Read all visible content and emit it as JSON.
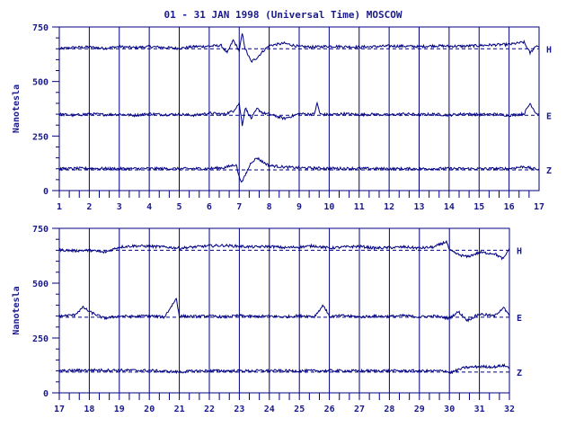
{
  "title": "01 - 31 JAN 1998 (Universal Time) MOSCOW",
  "colors": {
    "trace": "#000080",
    "axis": "#000080",
    "text": "#1a1a8c",
    "background": "#ffffff"
  },
  "chart_data": [
    {
      "type": "line",
      "panel": "top",
      "ylabel": "Nanotesla",
      "ylim": [
        0,
        750
      ],
      "yticks": [
        "0",
        "250",
        "500",
        "750"
      ],
      "xlim": [
        1,
        17
      ],
      "xticks": [
        "1",
        "2",
        "3",
        "4",
        "5",
        "6",
        "7",
        "8",
        "9",
        "10",
        "11",
        "12",
        "13",
        "14",
        "15",
        "16",
        "17"
      ],
      "grid": "vertical lines at each day",
      "series": [
        {
          "name": "H",
          "baseline": 650,
          "points": [
            [
              1,
              650
            ],
            [
              1.5,
              656
            ],
            [
              2,
              658
            ],
            [
              2.5,
              652
            ],
            [
              3,
              660
            ],
            [
              3.5,
              655
            ],
            [
              4,
              660
            ],
            [
              4.5,
              656
            ],
            [
              5,
              652
            ],
            [
              5.5,
              660
            ],
            [
              6,
              662
            ],
            [
              6.4,
              665
            ],
            [
              6.6,
              630
            ],
            [
              6.8,
              690
            ],
            [
              7,
              640
            ],
            [
              7.1,
              720
            ],
            [
              7.2,
              650
            ],
            [
              7.4,
              590
            ],
            [
              7.6,
              610
            ],
            [
              7.8,
              640
            ],
            [
              8,
              665
            ],
            [
              8.5,
              675
            ],
            [
              9,
              660
            ],
            [
              9.5,
              658
            ],
            [
              10,
              662
            ],
            [
              10.5,
              660
            ],
            [
              11,
              658
            ],
            [
              11.5,
              660
            ],
            [
              12,
              663
            ],
            [
              12.5,
              662
            ],
            [
              13,
              660
            ],
            [
              13.5,
              664
            ],
            [
              14,
              662
            ],
            [
              14.5,
              662
            ],
            [
              15,
              665
            ],
            [
              15.5,
              668
            ],
            [
              16,
              670
            ],
            [
              16.5,
              680
            ],
            [
              16.7,
              630
            ],
            [
              16.9,
              665
            ],
            [
              17,
              660
            ]
          ]
        },
        {
          "name": "E",
          "baseline": 345,
          "points": [
            [
              1,
              350
            ],
            [
              1.5,
              345
            ],
            [
              2,
              352
            ],
            [
              2.5,
              348
            ],
            [
              3,
              350
            ],
            [
              3.5,
              345
            ],
            [
              4,
              352
            ],
            [
              4.5,
              348
            ],
            [
              5,
              350
            ],
            [
              5.5,
              345
            ],
            [
              6,
              355
            ],
            [
              6.5,
              350
            ],
            [
              6.8,
              365
            ],
            [
              7,
              400
            ],
            [
              7.1,
              300
            ],
            [
              7.2,
              380
            ],
            [
              7.4,
              330
            ],
            [
              7.6,
              375
            ],
            [
              7.8,
              355
            ],
            [
              8,
              350
            ],
            [
              8.5,
              330
            ],
            [
              9,
              352
            ],
            [
              9.5,
              350
            ],
            [
              9.6,
              400
            ],
            [
              9.7,
              350
            ],
            [
              10,
              348
            ],
            [
              10.5,
              352
            ],
            [
              11,
              348
            ],
            [
              11.5,
              350
            ],
            [
              12,
              346
            ],
            [
              12.5,
              352
            ],
            [
              13,
              348
            ],
            [
              13.5,
              350
            ],
            [
              14,
              346
            ],
            [
              14.5,
              352
            ],
            [
              15,
              348
            ],
            [
              15.5,
              350
            ],
            [
              16,
              345
            ],
            [
              16.5,
              352
            ],
            [
              16.7,
              400
            ],
            [
              16.9,
              355
            ],
            [
              17,
              350
            ]
          ]
        },
        {
          "name": "Z",
          "baseline": 95,
          "points": [
            [
              1,
              100
            ],
            [
              2,
              102
            ],
            [
              3,
              100
            ],
            [
              4,
              101
            ],
            [
              5,
              100
            ],
            [
              6,
              101
            ],
            [
              6.5,
              105
            ],
            [
              6.9,
              120
            ],
            [
              7,
              60
            ],
            [
              7.1,
              40
            ],
            [
              7.2,
              70
            ],
            [
              7.4,
              130
            ],
            [
              7.6,
              150
            ],
            [
              7.8,
              130
            ],
            [
              8,
              115
            ],
            [
              8.5,
              108
            ],
            [
              9,
              104
            ],
            [
              10,
              102
            ],
            [
              11,
              101
            ],
            [
              12,
              100
            ],
            [
              13,
              100
            ],
            [
              14,
              101
            ],
            [
              15,
              100
            ],
            [
              16,
              101
            ],
            [
              16.5,
              110
            ],
            [
              16.8,
              100
            ],
            [
              17,
              98
            ]
          ]
        }
      ]
    },
    {
      "type": "line",
      "panel": "bottom",
      "ylabel": "Nanotesla",
      "ylim": [
        0,
        750
      ],
      "yticks": [
        "0",
        "250",
        "500",
        "750"
      ],
      "xlim": [
        17,
        32
      ],
      "xticks": [
        "17",
        "18",
        "19",
        "20",
        "21",
        "22",
        "23",
        "24",
        "25",
        "26",
        "27",
        "28",
        "29",
        "30",
        "31",
        "32"
      ],
      "grid": "vertical lines at each day",
      "series": [
        {
          "name": "H",
          "baseline": 650,
          "points": [
            [
              17,
              652
            ],
            [
              17.5,
              648
            ],
            [
              18,
              650
            ],
            [
              18.5,
              640
            ],
            [
              19,
              665
            ],
            [
              19.5,
              670
            ],
            [
              20,
              668
            ],
            [
              20.5,
              665
            ],
            [
              21,
              660
            ],
            [
              21.5,
              665
            ],
            [
              22,
              670
            ],
            [
              22.5,
              672
            ],
            [
              23,
              668
            ],
            [
              23.5,
              665
            ],
            [
              24,
              668
            ],
            [
              24.5,
              662
            ],
            [
              25,
              665
            ],
            [
              25.5,
              670
            ],
            [
              26,
              660
            ],
            [
              26.5,
              665
            ],
            [
              27,
              668
            ],
            [
              27.5,
              660
            ],
            [
              28,
              662
            ],
            [
              28.5,
              665
            ],
            [
              29,
              660
            ],
            [
              29.5,
              665
            ],
            [
              29.9,
              690
            ],
            [
              30,
              650
            ],
            [
              30.3,
              630
            ],
            [
              30.6,
              620
            ],
            [
              31,
              640
            ],
            [
              31.5,
              635
            ],
            [
              31.8,
              610
            ],
            [
              32,
              660
            ]
          ]
        },
        {
          "name": "E",
          "baseline": 345,
          "points": [
            [
              17,
              350
            ],
            [
              17.5,
              355
            ],
            [
              17.8,
              390
            ],
            [
              18,
              370
            ],
            [
              18.5,
              340
            ],
            [
              19,
              350
            ],
            [
              19.5,
              348
            ],
            [
              20,
              352
            ],
            [
              20.5,
              345
            ],
            [
              20.9,
              430
            ],
            [
              21,
              350
            ],
            [
              21.5,
              348
            ],
            [
              22,
              350
            ],
            [
              22.5,
              346
            ],
            [
              23,
              352
            ],
            [
              23.5,
              348
            ],
            [
              24,
              350
            ],
            [
              24.5,
              346
            ],
            [
              25,
              352
            ],
            [
              25.5,
              348
            ],
            [
              25.8,
              400
            ],
            [
              26,
              348
            ],
            [
              26.5,
              352
            ],
            [
              27,
              346
            ],
            [
              27.5,
              350
            ],
            [
              28,
              348
            ],
            [
              28.5,
              352
            ],
            [
              29,
              346
            ],
            [
              29.5,
              350
            ],
            [
              30,
              340
            ],
            [
              30.3,
              370
            ],
            [
              30.6,
              330
            ],
            [
              31,
              360
            ],
            [
              31.5,
              350
            ],
            [
              31.8,
              390
            ],
            [
              32,
              350
            ]
          ]
        },
        {
          "name": "Z",
          "baseline": 95,
          "points": [
            [
              17,
              100
            ],
            [
              18,
              104
            ],
            [
              19,
              103
            ],
            [
              20,
              102
            ],
            [
              21,
              95
            ],
            [
              21.5,
              100
            ],
            [
              22,
              101
            ],
            [
              23,
              100
            ],
            [
              24,
              101
            ],
            [
              25,
              100
            ],
            [
              26,
              101
            ],
            [
              27,
              100
            ],
            [
              28,
              101
            ],
            [
              29,
              100
            ],
            [
              29.9,
              100
            ],
            [
              30,
              90
            ],
            [
              30.5,
              115
            ],
            [
              31,
              120
            ],
            [
              31.5,
              118
            ],
            [
              31.8,
              125
            ],
            [
              32,
              115
            ]
          ]
        }
      ]
    }
  ]
}
